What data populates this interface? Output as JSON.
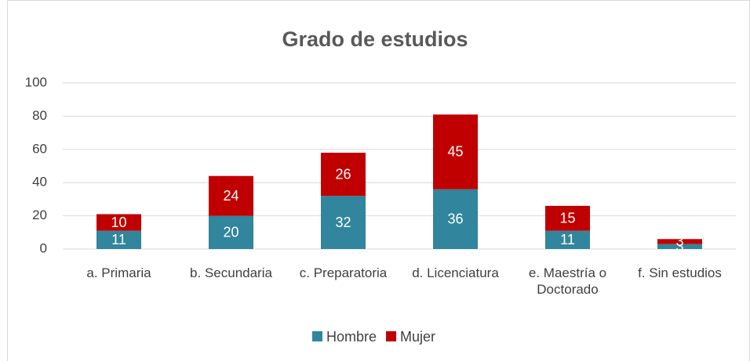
{
  "chart_data": {
    "type": "stacked_bar",
    "title": "Grado de estudios",
    "categories": [
      "a. Primaria",
      "b. Secundaria",
      "c. Preparatoria",
      "d. Licenciatura",
      "e. Maestría o Doctorado",
      "f. Sin estudios"
    ],
    "series": [
      {
        "name": "Hombre",
        "color": "#31859c",
        "values": [
          11,
          20,
          32,
          36,
          11,
          3
        ]
      },
      {
        "name": "Mujer",
        "color": "#c00000",
        "values": [
          10,
          24,
          26,
          45,
          15,
          3
        ]
      }
    ],
    "ylim": [
      0,
      100
    ],
    "yticks": [
      0,
      20,
      40,
      60,
      80,
      100
    ],
    "grid": true,
    "legend": "bottom"
  }
}
